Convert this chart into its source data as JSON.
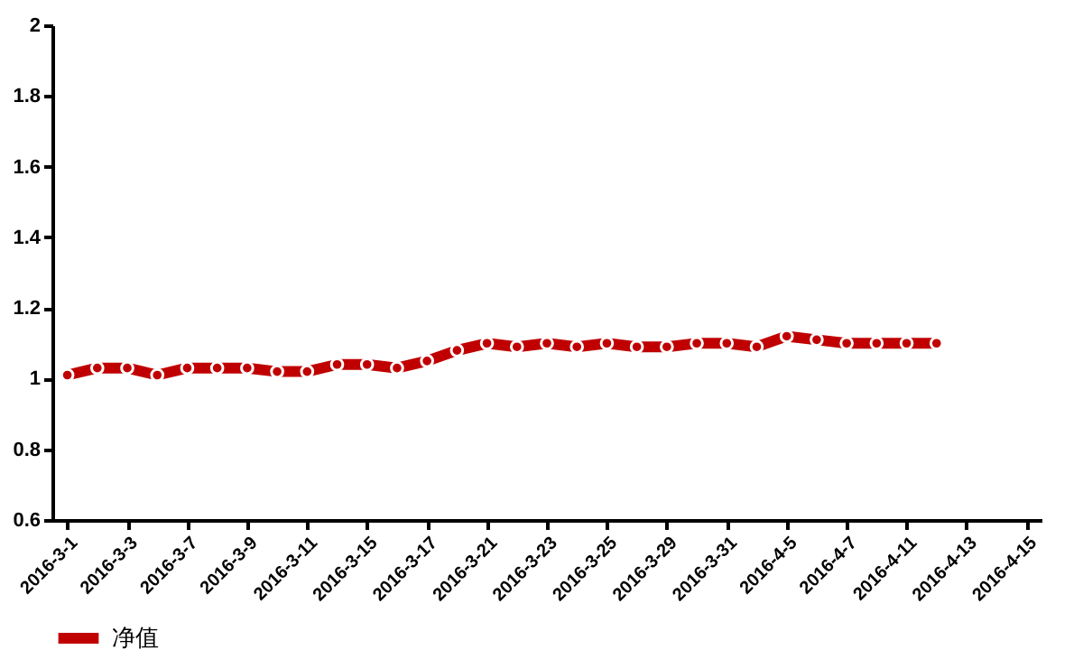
{
  "chart_data": {
    "type": "line",
    "categories": [
      "2016-3-1",
      null,
      "2016-3-3",
      null,
      "2016-3-7",
      null,
      "2016-3-9",
      null,
      "2016-3-11",
      null,
      "2016-3-15",
      null,
      "2016-3-17",
      null,
      "2016-3-21",
      null,
      "2016-3-23",
      null,
      "2016-3-25",
      null,
      "2016-3-29",
      null,
      "2016-3-31",
      null,
      "2016-4-5",
      null,
      "2016-4-7",
      null,
      "2016-4-11",
      null,
      "2016-4-13",
      null,
      "2016-4-15"
    ],
    "series": [
      {
        "name": "净值",
        "color": "#c00000",
        "values": [
          1.01,
          1.03,
          1.03,
          1.01,
          1.03,
          1.03,
          1.03,
          1.02,
          1.02,
          1.04,
          1.04,
          1.03,
          1.05,
          1.08,
          1.1,
          1.09,
          1.1,
          1.09,
          1.1,
          1.09,
          1.09,
          1.1,
          1.1,
          1.09,
          1.12,
          1.11,
          1.1,
          1.1,
          1.1,
          1.1,
          null,
          null,
          null
        ]
      }
    ],
    "ylim": [
      0.6,
      2
    ],
    "yticks": [
      0.6,
      0.8,
      1,
      1.2,
      1.4,
      1.6,
      1.8,
      2
    ],
    "grid": false,
    "legend": "bottom left",
    "marker": "circle",
    "line_style": "solid"
  }
}
